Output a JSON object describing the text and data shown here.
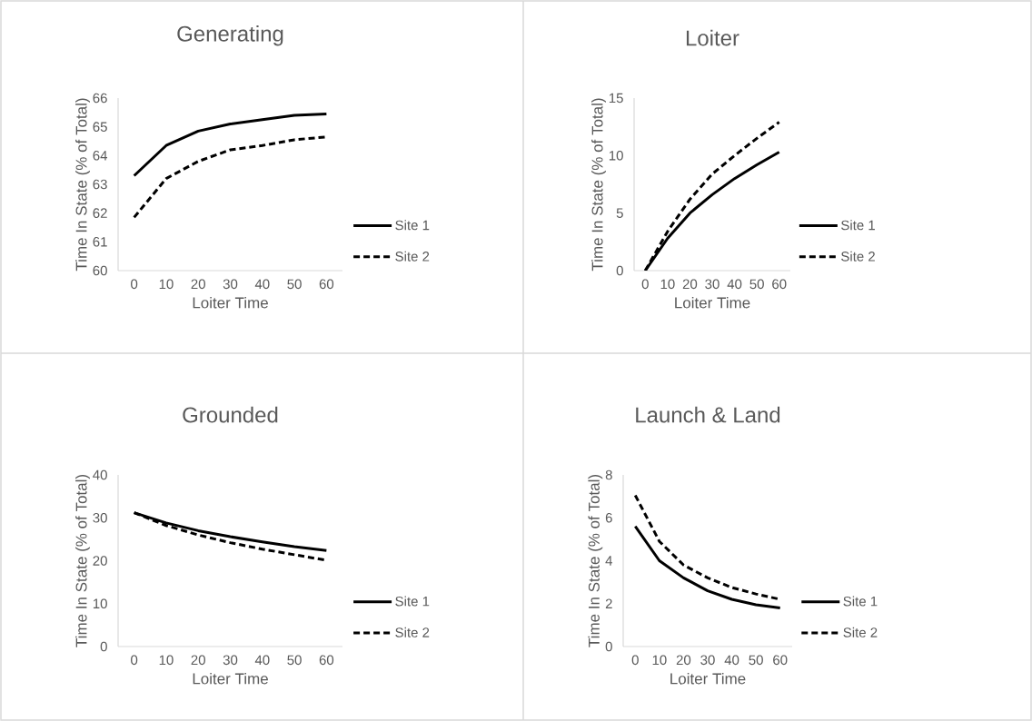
{
  "chart_data": [
    {
      "type": "line",
      "title": "Generating",
      "xlabel": "Loiter Time",
      "ylabel": "Time In State (% of Total)",
      "categories": [
        "0",
        "10",
        "20",
        "30",
        "40",
        "50",
        "60"
      ],
      "ylim": [
        60,
        66
      ],
      "yticks": [
        60,
        61,
        62,
        63,
        64,
        65,
        66
      ],
      "legend": "right",
      "series": [
        {
          "name": "Site 1",
          "color": "#000000",
          "line_style": "solid",
          "values": [
            63.3,
            64.35,
            64.85,
            65.1,
            65.25,
            65.4,
            65.45
          ]
        },
        {
          "name": "Site 2",
          "color": "#000000",
          "line_style": "dashed",
          "values": [
            61.85,
            63.2,
            63.8,
            64.2,
            64.35,
            64.55,
            64.65
          ]
        }
      ]
    },
    {
      "type": "line",
      "title": "Loiter",
      "xlabel": "Loiter Time",
      "ylabel": "Time In State (% of Total)",
      "categories": [
        "0",
        "10",
        "20",
        "30",
        "40",
        "50",
        "60"
      ],
      "ylim": [
        0,
        15
      ],
      "yticks": [
        0,
        5,
        10,
        15
      ],
      "legend": "right",
      "series": [
        {
          "name": "Site 1",
          "color": "#000000",
          "line_style": "solid",
          "values": [
            0,
            2.8,
            5.0,
            6.6,
            8.0,
            9.2,
            10.3
          ]
        },
        {
          "name": "Site 2",
          "color": "#000000",
          "line_style": "dashed",
          "values": [
            0,
            3.4,
            6.2,
            8.4,
            10.0,
            11.5,
            12.9
          ]
        }
      ]
    },
    {
      "type": "line",
      "title": "Grounded",
      "xlabel": "Loiter Time",
      "ylabel": "Time In State (% of Total)",
      "categories": [
        "0",
        "10",
        "20",
        "30",
        "40",
        "50",
        "60"
      ],
      "ylim": [
        0,
        40
      ],
      "yticks": [
        0,
        10,
        20,
        30,
        40
      ],
      "legend": "right",
      "series": [
        {
          "name": "Site 1",
          "color": "#000000",
          "line_style": "solid",
          "values": [
            31.2,
            28.8,
            27.0,
            25.6,
            24.4,
            23.3,
            22.4
          ]
        },
        {
          "name": "Site 2",
          "color": "#000000",
          "line_style": "dashed",
          "values": [
            31.2,
            28.2,
            26.0,
            24.2,
            22.7,
            21.4,
            20.1
          ]
        }
      ]
    },
    {
      "type": "line",
      "title": "Launch & Land",
      "xlabel": "Loiter Time",
      "ylabel": "Time In State (% of Total)",
      "categories": [
        "0",
        "10",
        "20",
        "30",
        "40",
        "50",
        "60"
      ],
      "ylim": [
        0,
        8
      ],
      "yticks": [
        0,
        2,
        4,
        6,
        8
      ],
      "legend": "right",
      "series": [
        {
          "name": "Site 1",
          "color": "#000000",
          "line_style": "solid",
          "values": [
            5.6,
            4.0,
            3.2,
            2.6,
            2.2,
            1.95,
            1.8
          ]
        },
        {
          "name": "Site 2",
          "color": "#000000",
          "line_style": "dashed",
          "values": [
            7.05,
            4.9,
            3.8,
            3.2,
            2.75,
            2.45,
            2.2
          ]
        }
      ]
    }
  ]
}
